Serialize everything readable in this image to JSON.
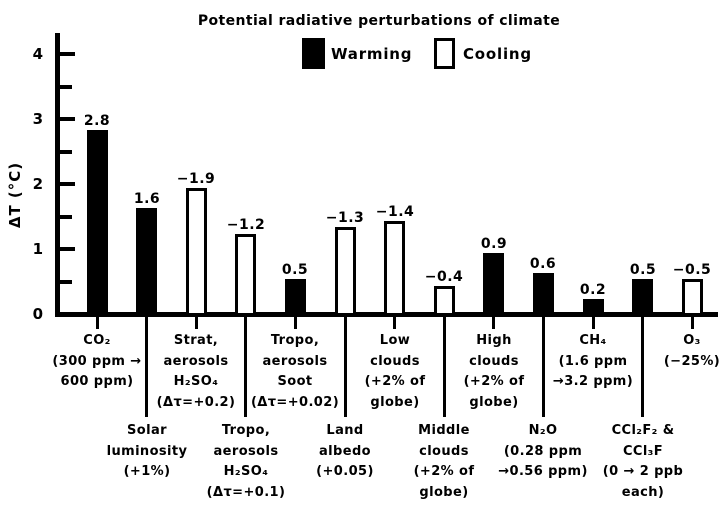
{
  "title": "Potential radiative perturbations of climate",
  "legend": {
    "warming_label": "Warming",
    "cooling_label": "Cooling"
  },
  "y_axis": {
    "title": "ΔT (°C)",
    "major_ticks": [
      0,
      1,
      2,
      3,
      4
    ],
    "minor_ticks": [
      0.5,
      1.5,
      2.5,
      3.5
    ]
  },
  "colors": {
    "ink": "#000000",
    "background": "#ffffff",
    "warming_fill": "#000000",
    "cooling_fill": "#ffffff"
  },
  "chart_data": {
    "type": "bar",
    "title": "Potential radiative perturbations of climate",
    "xlabel": "",
    "ylabel": "ΔT (°C)",
    "ylim": [
      0,
      4.3
    ],
    "grid": false,
    "legend_position": "top",
    "value_labels_shown": true,
    "note": "Bar heights show |ΔT|; cooling perturbations are drawn as open bars and labeled with negative values",
    "series_legend": [
      {
        "name": "Warming",
        "fill": "#000000"
      },
      {
        "name": "Cooling",
        "fill": "#ffffff"
      }
    ],
    "bars": [
      {
        "id": "co2",
        "value": 2.8,
        "series": "warming",
        "label_row": 1,
        "label_lines": [
          "CO₂",
          "(300 ppm →",
          "600 ppm)"
        ]
      },
      {
        "id": "solar-luminosity",
        "value": 1.6,
        "series": "warming",
        "label_row": 2,
        "label_lines": [
          "Solar",
          "luminosity",
          "(+1%)"
        ]
      },
      {
        "id": "strat-aerosols-h2so4",
        "value": -1.9,
        "series": "cooling",
        "label_row": 1,
        "label_lines": [
          "Strat,",
          "aerosols",
          "H₂SO₄",
          "(Δτ=+0.2)"
        ]
      },
      {
        "id": "tropo-aerosols-h2so4",
        "value": -1.2,
        "series": "cooling",
        "label_row": 2,
        "label_lines": [
          "Tropo,",
          "aerosols",
          "H₂SO₄",
          "(Δτ=+0.1)"
        ]
      },
      {
        "id": "tropo-aerosols-soot",
        "value": 0.5,
        "series": "warming",
        "label_row": 1,
        "label_lines": [
          "Tropo,",
          "aerosols",
          "Soot",
          "(Δτ=+0.02)"
        ]
      },
      {
        "id": "land-albedo",
        "value": -1.3,
        "series": "cooling",
        "label_row": 2,
        "label_lines": [
          "Land",
          "albedo",
          "(+0.05)"
        ]
      },
      {
        "id": "low-clouds",
        "value": -1.4,
        "series": "cooling",
        "label_row": 1,
        "label_lines": [
          "Low",
          "clouds",
          "(+2% of",
          "globe)"
        ]
      },
      {
        "id": "middle-clouds",
        "value": -0.4,
        "series": "cooling",
        "label_row": 2,
        "label_lines": [
          "Middle",
          "clouds",
          "(+2% of",
          "globe)"
        ]
      },
      {
        "id": "high-clouds",
        "value": 0.9,
        "series": "warming",
        "label_row": 1,
        "label_lines": [
          "High",
          "clouds",
          "(+2% of",
          "globe)"
        ]
      },
      {
        "id": "n2o",
        "value": 0.6,
        "series": "warming",
        "label_row": 2,
        "label_lines": [
          "N₂O",
          "(0.28 ppm",
          "→0.56 ppm)"
        ]
      },
      {
        "id": "ch4",
        "value": 0.2,
        "series": "warming",
        "label_row": 1,
        "label_lines": [
          "CH₄",
          "(1.6 ppm",
          "→3.2 ppm)"
        ]
      },
      {
        "id": "cfc",
        "value": 0.5,
        "series": "warming",
        "label_row": 2,
        "label_lines": [
          "CCl₂F₂ &",
          "CCl₃F",
          "(0 → 2 ppb",
          "each)"
        ]
      },
      {
        "id": "o3",
        "value": -0.5,
        "series": "cooling",
        "label_row": 1,
        "label_lines": [
          "O₃",
          "(−25%)"
        ]
      }
    ]
  }
}
